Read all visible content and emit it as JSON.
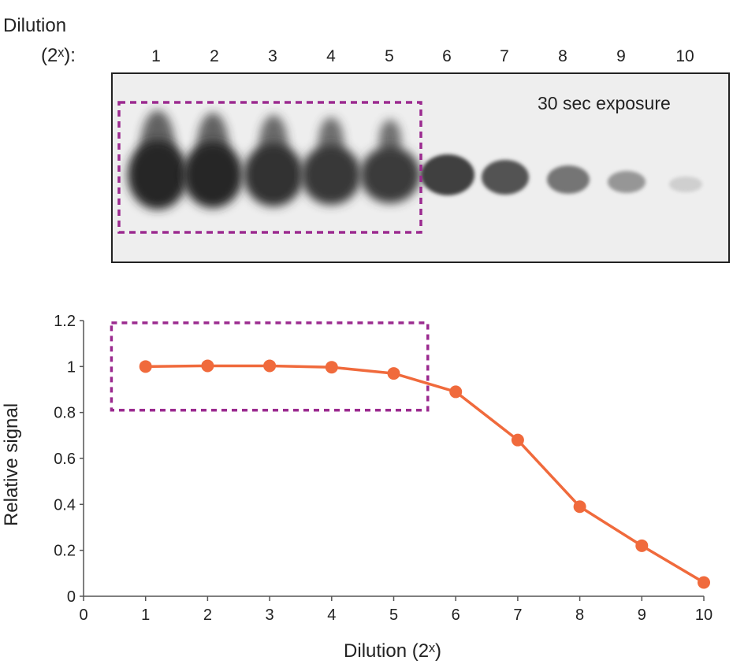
{
  "blot": {
    "row_label_line1": "Dilution",
    "row_label_line2": "(2ˣ):",
    "lanes": [
      "1",
      "2",
      "3",
      "4",
      "5",
      "6",
      "7",
      "8",
      "9",
      "10"
    ],
    "lane_intensity": [
      1.0,
      1.0,
      0.95,
      0.92,
      0.9,
      0.88,
      0.78,
      0.6,
      0.42,
      0.12
    ],
    "exposure_label": "30 sec exposure"
  },
  "chart_data": {
    "type": "line",
    "title": "",
    "xlabel": "Dilution (2ˣ)",
    "ylabel": "Relative signal",
    "xlim": [
      0,
      10
    ],
    "ylim": [
      0,
      1.2
    ],
    "xticks": [
      "0",
      "1",
      "2",
      "3",
      "4",
      "5",
      "6",
      "7",
      "8",
      "9",
      "10"
    ],
    "yticks": [
      "0",
      "0.2",
      "0.4",
      "0.6",
      "0.8",
      "1",
      "1.2"
    ],
    "x": [
      1,
      2,
      3,
      4,
      5,
      6,
      7,
      8,
      9,
      10
    ],
    "series": [
      {
        "name": "Relative signal",
        "values": [
          1.0,
          1.003,
          1.003,
          0.997,
          0.97,
          0.89,
          0.68,
          0.39,
          0.22,
          0.06
        ],
        "color": "#f06a3c"
      }
    ],
    "highlight_box": {
      "x_range": [
        0.45,
        5.55
      ],
      "y_range": [
        0.81,
        1.19
      ],
      "color": "#9b2a8f"
    },
    "grid": false
  }
}
